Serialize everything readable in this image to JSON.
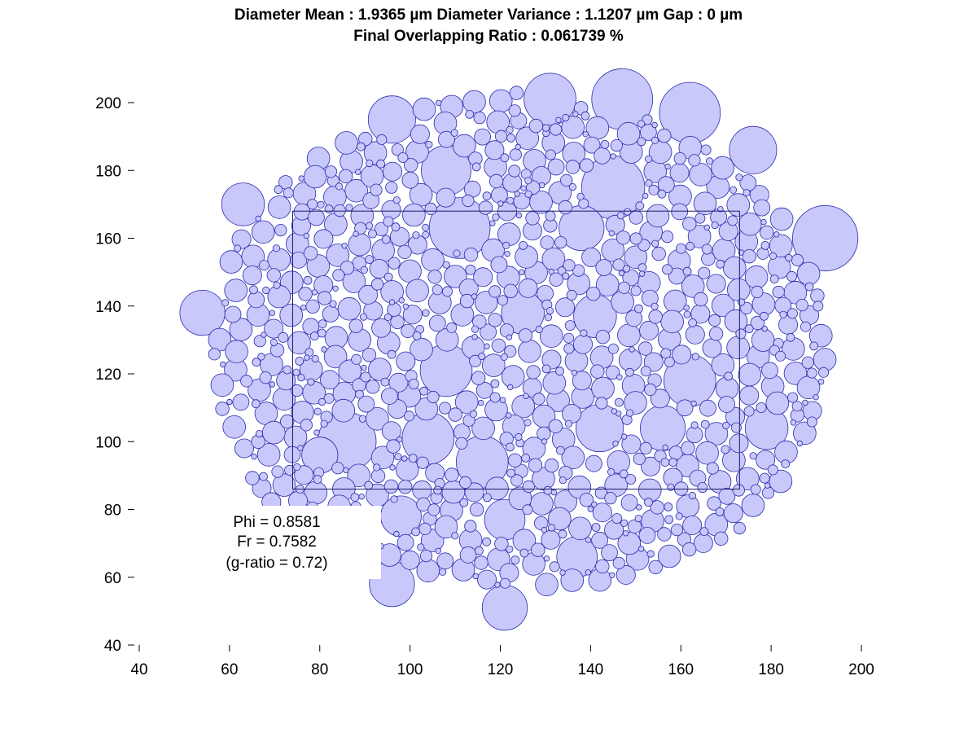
{
  "chart_data": {
    "type": "scatter",
    "title_line1": "Diameter Mean : 1.9365 µm    Diameter Variance : 1.1207 µm    Gap : 0 µm",
    "title_line2": "Final Overlapping Ratio : 0.061739 %",
    "xlabel": "",
    "ylabel": "",
    "xlim": [
      40,
      200
    ],
    "ylim": [
      40,
      205
    ],
    "x_ticks": [
      40,
      60,
      80,
      100,
      120,
      140,
      160,
      180,
      200
    ],
    "y_ticks": [
      40,
      60,
      80,
      100,
      120,
      140,
      160,
      180,
      200
    ],
    "grid": false,
    "circle_fill": "#c8c8fa",
    "circle_stroke": "#2b2bb0",
    "roi_box": {
      "x_min": 74,
      "x_max": 173,
      "y_min": 86,
      "y_max": 168
    },
    "annotation": [
      "Phi = 0.8581",
      "Fr = 0.7582",
      "(g-ratio = 0.72)"
    ],
    "large_circles": [
      {
        "x": 192,
        "y": 160,
        "d": 14.5
      },
      {
        "x": 147,
        "y": 201,
        "d": 13.5
      },
      {
        "x": 162,
        "y": 197,
        "d": 13.5
      },
      {
        "x": 131,
        "y": 201,
        "d": 11.5
      },
      {
        "x": 145,
        "y": 175,
        "d": 14
      },
      {
        "x": 111,
        "y": 163,
        "d": 13.5
      },
      {
        "x": 108,
        "y": 121,
        "d": 11.5
      },
      {
        "x": 104,
        "y": 101,
        "d": 11.5
      },
      {
        "x": 116,
        "y": 94,
        "d": 11.5
      },
      {
        "x": 86,
        "y": 100,
        "d": 13
      },
      {
        "x": 162,
        "y": 118,
        "d": 11.5
      },
      {
        "x": 125,
        "y": 138,
        "d": 9.5
      },
      {
        "x": 138,
        "y": 163,
        "d": 10
      },
      {
        "x": 96,
        "y": 195,
        "d": 10.5
      },
      {
        "x": 108,
        "y": 180,
        "d": 11
      },
      {
        "x": 96,
        "y": 58,
        "d": 10
      },
      {
        "x": 121,
        "y": 51,
        "d": 10
      },
      {
        "x": 54,
        "y": 138,
        "d": 10
      },
      {
        "x": 63,
        "y": 170,
        "d": 9.5
      },
      {
        "x": 176,
        "y": 186,
        "d": 10.5
      },
      {
        "x": 137,
        "y": 66,
        "d": 9
      },
      {
        "x": 142,
        "y": 104,
        "d": 10.5
      },
      {
        "x": 156,
        "y": 104,
        "d": 10
      },
      {
        "x": 179,
        "y": 104,
        "d": 9.5
      },
      {
        "x": 141,
        "y": 137,
        "d": 9.5
      },
      {
        "x": 121,
        "y": 77,
        "d": 9
      },
      {
        "x": 98,
        "y": 78,
        "d": 9
      },
      {
        "x": 80,
        "y": 96,
        "d": 8
      }
    ]
  }
}
